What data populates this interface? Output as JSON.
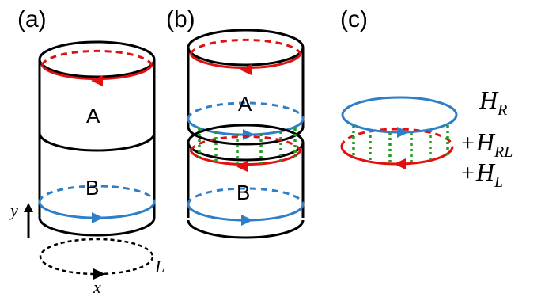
{
  "panels": {
    "a": {
      "label": "(a)",
      "top_region": "A",
      "bottom_region": "B"
    },
    "b": {
      "label": "(b)",
      "top_region": "A",
      "bottom_region": "B"
    },
    "c": {
      "label": "(c)"
    }
  },
  "axes": {
    "y": "y",
    "x": "x",
    "loop": "L"
  },
  "hamiltonian": {
    "term1": {
      "symbol": "H",
      "subscript": "R"
    },
    "term2": {
      "prefix": "+",
      "symbol": "H",
      "subscript": "RL"
    },
    "term3": {
      "prefix": "+",
      "symbol": "H",
      "subscript": "L"
    }
  },
  "colors": {
    "right_edge": "#e01010",
    "left_edge": "#2f7fc8",
    "coupling": "#1f9e1f",
    "outline": "#000000"
  }
}
